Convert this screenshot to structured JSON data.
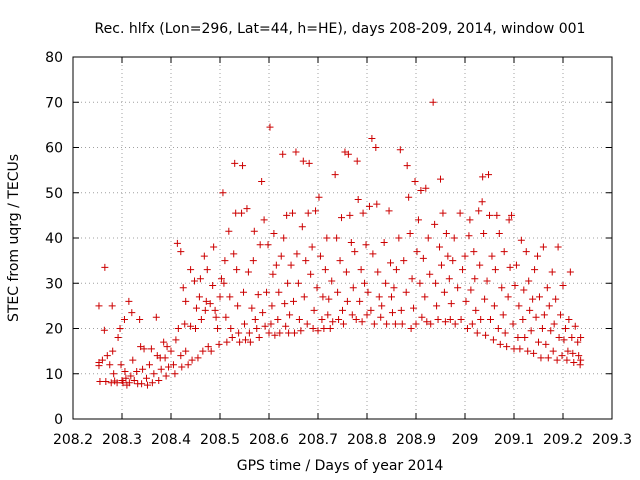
{
  "chart_data": {
    "type": "scatter",
    "title": "Rec. hlfx (Lon=296, Lat=44, h=HE), days 208-209, 2014, window 001",
    "xlabel": "GPS time / Days of year 2014",
    "ylabel": "STEC from uqrg / TECUs",
    "xlim": [
      208.2,
      209.3
    ],
    "ylim": [
      0,
      80
    ],
    "x_ticks": [
      "208.2",
      "208.3",
      "208.4",
      "208.5",
      "208.6",
      "208.7",
      "208.8",
      "208.9",
      "209",
      "209.1",
      "209.2",
      "209.3"
    ],
    "y_ticks": [
      "0",
      "10",
      "20",
      "30",
      "40",
      "50",
      "60",
      "70",
      "80"
    ],
    "grid": true,
    "marker": "plus",
    "color": "#cc0000",
    "points": [
      [
        208.253,
        25.0
      ],
      [
        208.253,
        12.5
      ],
      [
        208.253,
        11.8
      ],
      [
        208.255,
        8.3
      ],
      [
        208.26,
        13.0
      ],
      [
        208.264,
        19.6
      ],
      [
        208.265,
        33.5
      ],
      [
        208.267,
        8.3
      ],
      [
        208.27,
        14.0
      ],
      [
        208.275,
        12.0
      ],
      [
        208.278,
        8.0
      ],
      [
        208.28,
        25.0
      ],
      [
        208.281,
        15.0
      ],
      [
        208.283,
        10.0
      ],
      [
        208.285,
        8.4
      ],
      [
        208.29,
        8.0
      ],
      [
        208.292,
        18.0
      ],
      [
        208.296,
        20.0
      ],
      [
        208.298,
        12.0
      ],
      [
        208.3,
        8.5
      ],
      [
        208.302,
        8.0
      ],
      [
        208.305,
        22.0
      ],
      [
        208.306,
        10.5
      ],
      [
        208.308,
        9.0
      ],
      [
        208.31,
        7.5
      ],
      [
        208.314,
        26.0
      ],
      [
        208.315,
        8.0
      ],
      [
        208.318,
        9.5
      ],
      [
        208.32,
        23.5
      ],
      [
        208.322,
        13.0
      ],
      [
        208.325,
        8.5
      ],
      [
        208.33,
        10.5
      ],
      [
        208.332,
        7.8
      ],
      [
        208.336,
        22.0
      ],
      [
        208.338,
        16.0
      ],
      [
        208.34,
        7.8
      ],
      [
        208.342,
        11.0
      ],
      [
        208.345,
        15.5
      ],
      [
        208.35,
        9.0
      ],
      [
        208.352,
        7.5
      ],
      [
        208.356,
        12.0
      ],
      [
        208.36,
        15.5
      ],
      [
        208.362,
        8.0
      ],
      [
        208.365,
        10.0
      ],
      [
        208.37,
        22.5
      ],
      [
        208.372,
        14.0
      ],
      [
        208.375,
        8.5
      ],
      [
        208.378,
        13.5
      ],
      [
        208.38,
        11.0
      ],
      [
        208.385,
        17.0
      ],
      [
        208.388,
        13.5
      ],
      [
        208.39,
        9.5
      ],
      [
        208.392,
        16.0
      ],
      [
        208.395,
        11.5
      ],
      [
        208.4,
        15.0
      ],
      [
        208.405,
        12.0
      ],
      [
        208.408,
        10.0
      ],
      [
        208.41,
        17.5
      ],
      [
        208.413,
        38.8
      ],
      [
        208.415,
        20.0
      ],
      [
        208.42,
        37.0
      ],
      [
        208.42,
        14.0
      ],
      [
        208.422,
        11.5
      ],
      [
        208.425,
        29.0
      ],
      [
        208.428,
        21.0
      ],
      [
        208.43,
        26.0
      ],
      [
        208.43,
        15.0
      ],
      [
        208.435,
        12.0
      ],
      [
        208.44,
        20.5
      ],
      [
        208.44,
        33.0
      ],
      [
        208.443,
        13.0
      ],
      [
        208.448,
        30.5
      ],
      [
        208.45,
        20.0
      ],
      [
        208.452,
        24.5
      ],
      [
        208.455,
        13.5
      ],
      [
        208.458,
        27.0
      ],
      [
        208.46,
        31.0
      ],
      [
        208.462,
        22.0
      ],
      [
        208.465,
        15.0
      ],
      [
        208.468,
        36.0
      ],
      [
        208.47,
        24.0
      ],
      [
        208.472,
        26.0
      ],
      [
        208.474,
        33.0
      ],
      [
        208.476,
        16.0
      ],
      [
        208.48,
        25.5
      ],
      [
        208.482,
        15.0
      ],
      [
        208.485,
        29.5
      ],
      [
        208.487,
        38.0
      ],
      [
        208.49,
        24.0
      ],
      [
        208.492,
        22.5
      ],
      [
        208.495,
        20.0
      ],
      [
        208.498,
        16.5
      ],
      [
        208.5,
        27.0
      ],
      [
        208.503,
        31.0
      ],
      [
        208.506,
        50.0
      ],
      [
        208.508,
        30.0
      ],
      [
        208.51,
        35.0
      ],
      [
        208.512,
        22.5
      ],
      [
        208.514,
        17.0
      ],
      [
        208.518,
        41.5
      ],
      [
        208.52,
        27.0
      ],
      [
        208.522,
        20.0
      ],
      [
        208.525,
        18.0
      ],
      [
        208.528,
        36.5
      ],
      [
        208.53,
        56.5
      ],
      [
        208.532,
        45.5
      ],
      [
        208.534,
        33.0
      ],
      [
        208.536,
        25.0
      ],
      [
        208.538,
        19.0
      ],
      [
        208.54,
        17.0
      ],
      [
        208.544,
        45.5
      ],
      [
        208.546,
        56.0
      ],
      [
        208.548,
        28.0
      ],
      [
        208.55,
        21.0
      ],
      [
        208.552,
        17.5
      ],
      [
        208.555,
        46.5
      ],
      [
        208.558,
        32.5
      ],
      [
        208.56,
        19.0
      ],
      [
        208.562,
        17.0
      ],
      [
        208.565,
        24.5
      ],
      [
        208.568,
        35.0
      ],
      [
        208.57,
        41.5
      ],
      [
        208.572,
        22.0
      ],
      [
        208.575,
        20.0
      ],
      [
        208.578,
        27.5
      ],
      [
        208.58,
        18.0
      ],
      [
        208.582,
        38.5
      ],
      [
        208.585,
        52.5
      ],
      [
        208.587,
        23.5
      ],
      [
        208.59,
        44.0
      ],
      [
        208.592,
        20.5
      ],
      [
        208.595,
        28.0
      ],
      [
        208.598,
        38.5
      ],
      [
        208.6,
        19.0
      ],
      [
        208.602,
        64.5
      ],
      [
        208.604,
        21.0
      ],
      [
        208.606,
        25.0
      ],
      [
        208.608,
        32.0
      ],
      [
        208.61,
        41.0
      ],
      [
        208.612,
        18.5
      ],
      [
        208.615,
        34.0
      ],
      [
        208.618,
        22.0
      ],
      [
        208.62,
        28.0
      ],
      [
        208.622,
        19.0
      ],
      [
        208.625,
        36.0
      ],
      [
        208.628,
        58.5
      ],
      [
        208.63,
        40.0
      ],
      [
        208.632,
        25.5
      ],
      [
        208.634,
        20.5
      ],
      [
        208.636,
        45.0
      ],
      [
        208.638,
        30.0
      ],
      [
        208.64,
        19.0
      ],
      [
        208.642,
        23.0
      ],
      [
        208.645,
        34.0
      ],
      [
        208.648,
        45.5
      ],
      [
        208.65,
        26.0
      ],
      [
        208.652,
        19.0
      ],
      [
        208.655,
        59.0
      ],
      [
        208.657,
        36.5
      ],
      [
        208.66,
        30.0
      ],
      [
        208.662,
        22.0
      ],
      [
        208.665,
        19.5
      ],
      [
        208.668,
        42.5
      ],
      [
        208.67,
        57.0
      ],
      [
        208.672,
        27.0
      ],
      [
        208.675,
        35.0
      ],
      [
        208.678,
        21.0
      ],
      [
        208.68,
        45.5
      ],
      [
        208.682,
        56.5
      ],
      [
        208.685,
        32.0
      ],
      [
        208.688,
        38.0
      ],
      [
        208.69,
        20.0
      ],
      [
        208.692,
        24.0
      ],
      [
        208.695,
        46.0
      ],
      [
        208.698,
        29.0
      ],
      [
        208.7,
        19.5
      ],
      [
        208.702,
        49.0
      ],
      [
        208.705,
        36.0
      ],
      [
        208.708,
        22.0
      ],
      [
        208.71,
        27.0
      ],
      [
        208.712,
        20.0
      ],
      [
        208.715,
        33.0
      ],
      [
        208.718,
        40.0
      ],
      [
        208.72,
        23.0
      ],
      [
        208.722,
        26.5
      ],
      [
        208.725,
        20.0
      ],
      [
        208.728,
        30.5
      ],
      [
        208.73,
        21.5
      ],
      [
        208.735,
        54.0
      ],
      [
        208.738,
        40.0
      ],
      [
        208.74,
        28.0
      ],
      [
        208.742,
        22.0
      ],
      [
        208.745,
        35.0
      ],
      [
        208.748,
        44.5
      ],
      [
        208.75,
        24.0
      ],
      [
        208.752,
        21.0
      ],
      [
        208.755,
        59.0
      ],
      [
        208.758,
        32.5
      ],
      [
        208.76,
        26.0
      ],
      [
        208.762,
        58.5
      ],
      [
        208.765,
        45.0
      ],
      [
        208.768,
        39.0
      ],
      [
        208.77,
        23.0
      ],
      [
        208.772,
        29.0
      ],
      [
        208.775,
        37.0
      ],
      [
        208.778,
        22.0
      ],
      [
        208.78,
        57.0
      ],
      [
        208.782,
        48.5
      ],
      [
        208.785,
        26.0
      ],
      [
        208.788,
        33.0
      ],
      [
        208.79,
        21.5
      ],
      [
        208.792,
        45.5
      ],
      [
        208.795,
        30.0
      ],
      [
        208.798,
        38.5
      ],
      [
        208.8,
        23.0
      ],
      [
        208.802,
        28.0
      ],
      [
        208.805,
        47.0
      ],
      [
        208.808,
        24.0
      ],
      [
        208.81,
        62.0
      ],
      [
        208.812,
        36.5
      ],
      [
        208.815,
        21.0
      ],
      [
        208.818,
        60.0
      ],
      [
        208.82,
        47.5
      ],
      [
        208.822,
        32.5
      ],
      [
        208.825,
        27.0
      ],
      [
        208.828,
        22.5
      ],
      [
        208.83,
        25.0
      ],
      [
        208.835,
        39.0
      ],
      [
        208.838,
        30.0
      ],
      [
        208.84,
        21.0
      ],
      [
        208.845,
        46.0
      ],
      [
        208.848,
        34.5
      ],
      [
        208.85,
        27.0
      ],
      [
        208.852,
        23.5
      ],
      [
        208.855,
        29.0
      ],
      [
        208.858,
        21.0
      ],
      [
        208.86,
        33.0
      ],
      [
        208.865,
        40.0
      ],
      [
        208.868,
        59.5
      ],
      [
        208.87,
        24.0
      ],
      [
        208.872,
        21.0
      ],
      [
        208.875,
        35.0
      ],
      [
        208.88,
        28.0
      ],
      [
        208.882,
        56.0
      ],
      [
        208.885,
        49.0
      ],
      [
        208.888,
        41.0
      ],
      [
        208.89,
        20.0
      ],
      [
        208.892,
        31.0
      ],
      [
        208.895,
        24.5
      ],
      [
        208.898,
        52.5
      ],
      [
        208.9,
        21.0
      ],
      [
        208.902,
        37.0
      ],
      [
        208.905,
        44.0
      ],
      [
        208.908,
        30.0
      ],
      [
        208.91,
        50.5
      ],
      [
        208.912,
        22.5
      ],
      [
        208.915,
        35.5
      ],
      [
        208.918,
        27.0
      ],
      [
        208.92,
        51.0
      ],
      [
        208.922,
        21.5
      ],
      [
        208.925,
        40.0
      ],
      [
        208.928,
        32.0
      ],
      [
        208.93,
        21.0
      ],
      [
        208.935,
        70.0
      ],
      [
        208.938,
        43.0
      ],
      [
        208.94,
        30.0
      ],
      [
        208.942,
        25.0
      ],
      [
        208.945,
        22.0
      ],
      [
        208.948,
        38.0
      ],
      [
        208.95,
        53.0
      ],
      [
        208.952,
        34.0
      ],
      [
        208.955,
        45.5
      ],
      [
        208.958,
        28.0
      ],
      [
        208.96,
        21.5
      ],
      [
        208.962,
        41.0
      ],
      [
        208.965,
        36.0
      ],
      [
        208.968,
        31.0
      ],
      [
        208.97,
        22.0
      ],
      [
        208.972,
        25.5
      ],
      [
        208.975,
        35.0
      ],
      [
        208.978,
        40.0
      ],
      [
        208.98,
        21.0
      ],
      [
        208.985,
        29.0
      ],
      [
        208.99,
        45.5
      ],
      [
        208.992,
        22.0
      ],
      [
        208.995,
        33.0
      ],
      [
        209.0,
        36.0
      ],
      [
        209.002,
        26.0
      ],
      [
        209.005,
        20.0
      ],
      [
        209.008,
        40.5
      ],
      [
        209.01,
        44.0
      ],
      [
        209.012,
        28.5
      ],
      [
        209.015,
        21.0
      ],
      [
        209.018,
        37.0
      ],
      [
        209.02,
        31.0
      ],
      [
        209.022,
        24.0
      ],
      [
        209.025,
        19.0
      ],
      [
        209.028,
        46.0
      ],
      [
        209.03,
        34.0
      ],
      [
        209.032,
        22.0
      ],
      [
        209.035,
        48.0
      ],
      [
        209.036,
        53.5
      ],
      [
        209.038,
        41.0
      ],
      [
        209.04,
        26.5
      ],
      [
        209.042,
        18.5
      ],
      [
        209.045,
        30.5
      ],
      [
        209.048,
        54.0
      ],
      [
        209.05,
        45.0
      ],
      [
        209.052,
        22.0
      ],
      [
        209.055,
        36.0
      ],
      [
        209.058,
        17.5
      ],
      [
        209.06,
        25.0
      ],
      [
        209.062,
        33.0
      ],
      [
        209.065,
        45.0
      ],
      [
        209.068,
        20.0
      ],
      [
        209.07,
        41.0
      ],
      [
        209.072,
        16.5
      ],
      [
        209.075,
        29.0
      ],
      [
        209.078,
        23.0
      ],
      [
        209.08,
        37.0
      ],
      [
        209.082,
        19.0
      ],
      [
        209.085,
        16.0
      ],
      [
        209.088,
        27.0
      ],
      [
        209.09,
        44.0
      ],
      [
        209.092,
        33.5
      ],
      [
        209.095,
        45.0
      ],
      [
        209.098,
        21.0
      ],
      [
        209.1,
        15.5
      ],
      [
        209.102,
        29.5
      ],
      [
        209.105,
        34.0
      ],
      [
        209.108,
        18.0
      ],
      [
        209.11,
        25.0
      ],
      [
        209.112,
        15.5
      ],
      [
        209.115,
        39.5
      ],
      [
        209.118,
        22.0
      ],
      [
        209.12,
        28.5
      ],
      [
        209.122,
        18.0
      ],
      [
        209.125,
        37.0
      ],
      [
        209.128,
        15.0
      ],
      [
        209.13,
        30.5
      ],
      [
        209.132,
        24.0
      ],
      [
        209.135,
        19.5
      ],
      [
        209.138,
        26.5
      ],
      [
        209.14,
        14.5
      ],
      [
        209.142,
        33.0
      ],
      [
        209.145,
        22.5
      ],
      [
        209.148,
        36.0
      ],
      [
        209.15,
        17.0
      ],
      [
        209.152,
        27.0
      ],
      [
        209.155,
        13.5
      ],
      [
        209.158,
        20.0
      ],
      [
        209.16,
        38.0
      ],
      [
        209.162,
        23.0
      ],
      [
        209.165,
        16.5
      ],
      [
        209.168,
        29.0
      ],
      [
        209.17,
        13.5
      ],
      [
        209.172,
        25.0
      ],
      [
        209.175,
        19.5
      ],
      [
        209.178,
        32.5
      ],
      [
        209.18,
        15.0
      ],
      [
        209.182,
        21.0
      ],
      [
        209.185,
        26.5
      ],
      [
        209.188,
        13.0
      ],
      [
        209.19,
        38.0
      ],
      [
        209.192,
        18.0
      ],
      [
        209.195,
        23.0
      ],
      [
        209.198,
        14.0
      ],
      [
        209.2,
        29.5
      ],
      [
        209.202,
        17.5
      ],
      [
        209.205,
        20.0
      ],
      [
        209.208,
        13.0
      ],
      [
        209.21,
        15.0
      ],
      [
        209.212,
        22.0
      ],
      [
        209.215,
        32.5
      ],
      [
        209.218,
        18.0
      ],
      [
        209.22,
        14.5
      ],
      [
        209.222,
        12.5
      ],
      [
        209.225,
        20.5
      ],
      [
        209.23,
        17.0
      ],
      [
        209.232,
        14.0
      ],
      [
        209.235,
        12.0
      ],
      [
        209.236,
        18.0
      ],
      [
        209.236,
        13.0
      ]
    ]
  }
}
